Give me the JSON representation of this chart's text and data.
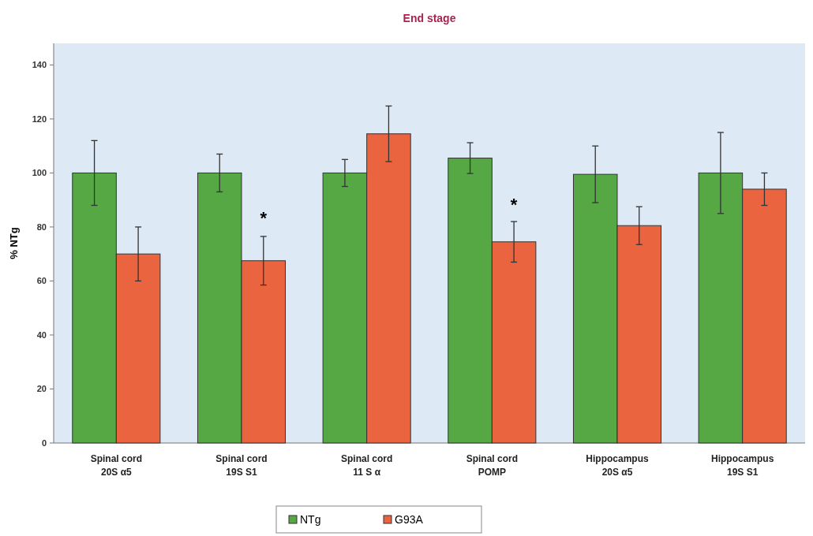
{
  "chart_data": {
    "type": "bar",
    "title": "End stage",
    "ylabel": "% NTg",
    "categories": [
      "Spinal cord\n20S α5",
      "Spinal cord\n19S S1",
      "Spinal cord\n11 S α",
      "Spinal cord\nPOMP",
      "Hippocampus\n20S α5",
      "Hippocampus\n19S S1"
    ],
    "series": [
      {
        "name": "NTg",
        "color": "#55a843",
        "values": [
          100,
          100,
          100,
          105.5,
          99.5,
          100
        ],
        "errors": [
          12,
          7,
          5,
          5.7,
          10.5,
          15
        ]
      },
      {
        "name": "G93A",
        "color": "#ea6440",
        "values": [
          70,
          67.5,
          114.5,
          74.5,
          80.5,
          94
        ],
        "errors": [
          10,
          9,
          10.3,
          7.5,
          7,
          6
        ]
      }
    ],
    "ylim": [
      0,
      148
    ],
    "yticks": [
      0,
      20,
      40,
      60,
      80,
      100,
      120,
      140
    ],
    "legend": "bottom",
    "annotations": [
      {
        "text": "*",
        "x": "Spinal cord\n19S S1",
        "y": 85
      },
      {
        "text": "*",
        "x": "Spinal cord\nPOMP",
        "y": 90
      }
    ]
  }
}
